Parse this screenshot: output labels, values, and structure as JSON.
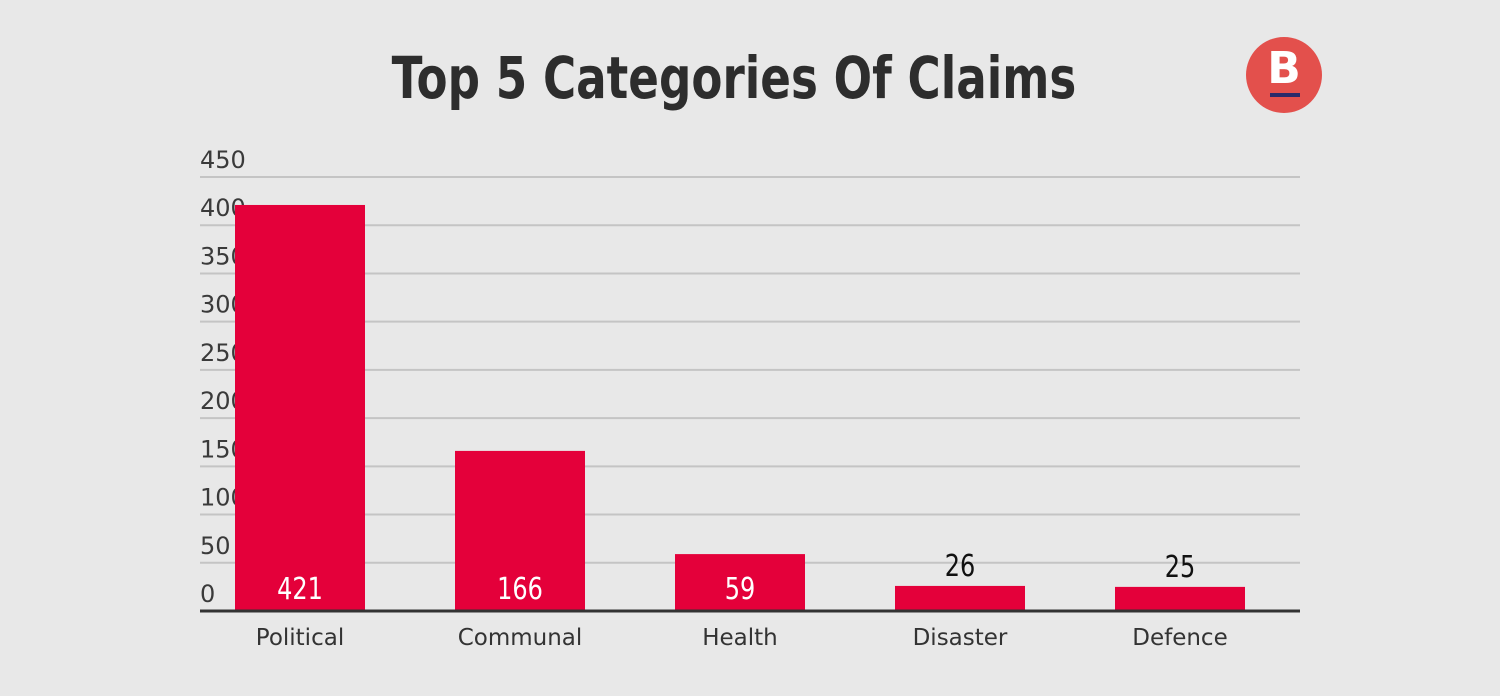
{
  "logo": {
    "letter": "B",
    "color": "#e3504c",
    "bar_color": "#2a2a6a"
  },
  "chart_data": {
    "type": "bar",
    "title": "Top 5 Categories Of Claims",
    "xlabel": "",
    "ylabel": "",
    "categories": [
      "Political",
      "Communal",
      "Health",
      "Disaster",
      "Defence"
    ],
    "values": [
      421,
      166,
      59,
      26,
      25
    ],
    "data_labels": [
      "421",
      "166",
      "59",
      "26",
      "25"
    ],
    "ylim": [
      0,
      450
    ],
    "yticks": [
      0,
      50,
      100,
      150,
      200,
      250,
      300,
      350,
      400,
      450
    ],
    "grid": true,
    "legend": "none",
    "bar_color": "#e4003a",
    "gridline_color": "#c4c4c4",
    "axis_color": "#333333",
    "label_inside_color": "#ffffff",
    "label_outside_color": "#111111"
  }
}
